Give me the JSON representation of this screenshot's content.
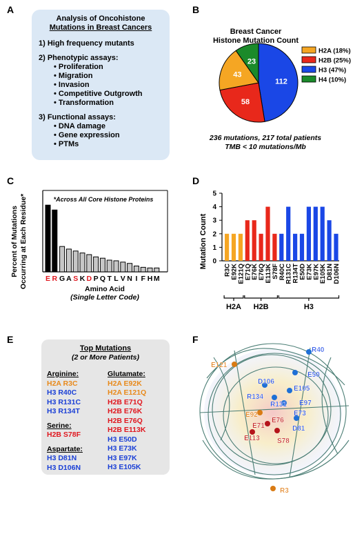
{
  "panels": {
    "A": "A",
    "B": "B",
    "C": "C",
    "D": "D",
    "E": "E",
    "F": "F"
  },
  "panelA": {
    "title_line1": "Analysis of Oncohistone",
    "title_line2": "Mutations in Breast Cancers",
    "item1": "1) High frequency mutants",
    "item2": "2) Phenotypic assays:",
    "item2_bullets": [
      "Proliferation",
      "Migration",
      "Invasion",
      "Competitive Outgrowth",
      "Transformation"
    ],
    "item3": "3) Functional assays:",
    "item3_bullets": [
      "DNA damage",
      "Gene expression",
      "PTMs"
    ]
  },
  "panelB": {
    "title_line1": "Breast Cancer",
    "title_line2": "Histone Mutation Count",
    "footer_line1": "236 mutations, 217 total patients",
    "footer_line2": "TMB < 10 mutations/Mb",
    "colors": {
      "H2A": "#f5a623",
      "H2B": "#e8281b",
      "H3": "#1a47e6",
      "H4": "#1b8a2a"
    }
  },
  "panelC": {
    "note": "*Across All Core Histone Proteins",
    "ylabel_line1": "Percent of Mutations",
    "ylabel_line2": "Occurring at Each Residue*",
    "xlabel_line1": "Amino Acid",
    "xlabel_line2": "(Single Letter Code)"
  },
  "panelD": {
    "ylabel": "Mutation Count",
    "groups": [
      "H2A",
      "H2B",
      "H3"
    ]
  },
  "panelE": {
    "title": "Top Mutations",
    "subtitle": "(2 or More Patients)",
    "col1": [
      {
        "text": "Arginine:",
        "type": "header"
      },
      {
        "text": "H2A R3C",
        "type": "H2A"
      },
      {
        "text": "H3 R40C",
        "type": "H3"
      },
      {
        "text": "H3 R131C",
        "type": "H3"
      },
      {
        "text": "H3 R134T",
        "type": "H3"
      },
      {
        "text": "",
        "type": "gap"
      },
      {
        "text": "Serine:",
        "type": "header"
      },
      {
        "text": "H2B S78F",
        "type": "H2B"
      },
      {
        "text": "",
        "type": "gap"
      },
      {
        "text": "Aspartate:",
        "type": "header"
      },
      {
        "text": "H3 D81N",
        "type": "H3"
      },
      {
        "text": "H3 D106N",
        "type": "H3"
      }
    ],
    "col2": [
      {
        "text": "Glutamate:",
        "type": "header"
      },
      {
        "text": "H2A E92K",
        "type": "H2A"
      },
      {
        "text": "H2A E121Q",
        "type": "H2A"
      },
      {
        "text": "H2B E71Q",
        "type": "H2B"
      },
      {
        "text": "H2B E76K",
        "type": "H2B"
      },
      {
        "text": "H2B E76Q",
        "type": "H2B"
      },
      {
        "text": "H2B E113K",
        "type": "H2B"
      },
      {
        "text": "H3 E50D",
        "type": "H3"
      },
      {
        "text": "H3 E73K",
        "type": "H3"
      },
      {
        "text": "H3 E97K",
        "type": "H3"
      },
      {
        "text": "H3 E105K",
        "type": "H3"
      }
    ]
  },
  "panelF": {
    "labels": [
      {
        "text": "R40",
        "color": "#1a47e6"
      },
      {
        "text": "E121",
        "color": "#e07a10"
      },
      {
        "text": "E50",
        "color": "#1a47e6"
      },
      {
        "text": "D106",
        "color": "#1a47e6"
      },
      {
        "text": "E105",
        "color": "#1a47e6"
      },
      {
        "text": "R134",
        "color": "#1a47e6"
      },
      {
        "text": "R131",
        "color": "#1a47e6"
      },
      {
        "text": "E97",
        "color": "#1a47e6"
      },
      {
        "text": "E73",
        "color": "#1a47e6"
      },
      {
        "text": "E92",
        "color": "#e07a10"
      },
      {
        "text": "E76",
        "color": "#c0181a"
      },
      {
        "text": "E71",
        "color": "#c0181a"
      },
      {
        "text": "D81",
        "color": "#1a47e6"
      },
      {
        "text": "E113",
        "color": "#c0181a"
      },
      {
        "text": "S78",
        "color": "#c0181a"
      },
      {
        "text": "R3",
        "color": "#e07a10"
      }
    ]
  },
  "chart_data": [
    {
      "type": "pie",
      "title": "Breast Cancer Histone Mutation Count",
      "categories": [
        "H2A (18%)",
        "H2B (25%)",
        "H3 (47%)",
        "H4 (10%)"
      ],
      "values": [
        43,
        58,
        112,
        23
      ],
      "legend": "right"
    },
    {
      "type": "bar",
      "ylabel": "Percent of Mutations Occurring at Each Residue*",
      "xlabel": "Amino Acid (Single Letter Code)",
      "categories": [
        "E",
        "R",
        "G",
        "A",
        "S",
        "K",
        "D",
        "P",
        "Q",
        "T",
        "L",
        "V",
        "N",
        "I",
        "F",
        "H",
        "M"
      ],
      "highlight": [
        "E",
        "R",
        "S",
        "D"
      ],
      "values": [
        20.5,
        19,
        7.8,
        7,
        6.4,
        5.8,
        5.3,
        4.6,
        4.2,
        3.6,
        3.4,
        3,
        2.6,
        1.8,
        1.4,
        1.2,
        1.2
      ],
      "ylim": [
        0,
        25
      ]
    },
    {
      "type": "bar",
      "ylabel": "Mutation Count",
      "ylim": [
        0,
        5
      ],
      "yticks": [
        0,
        1,
        2,
        3,
        4,
        5
      ],
      "categories": [
        "R3C",
        "E92K",
        "E121Q",
        "E71Q",
        "E76K",
        "E76Q",
        "E113K",
        "S78F",
        "R40C",
        "R131C",
        "R134T",
        "E50D",
        "E73K",
        "E97K",
        "E105K",
        "D81N",
        "D106N"
      ],
      "groups": [
        "H2A",
        "H2A",
        "H2A",
        "H2B",
        "H2B",
        "H2B",
        "H2B",
        "H2B",
        "H3",
        "H3",
        "H3",
        "H3",
        "H3",
        "H3",
        "H3",
        "H3",
        "H3"
      ],
      "values": [
        2,
        2,
        2,
        3,
        3,
        2,
        4,
        2,
        2,
        4,
        2,
        2,
        4,
        4,
        4,
        3,
        2
      ]
    }
  ]
}
